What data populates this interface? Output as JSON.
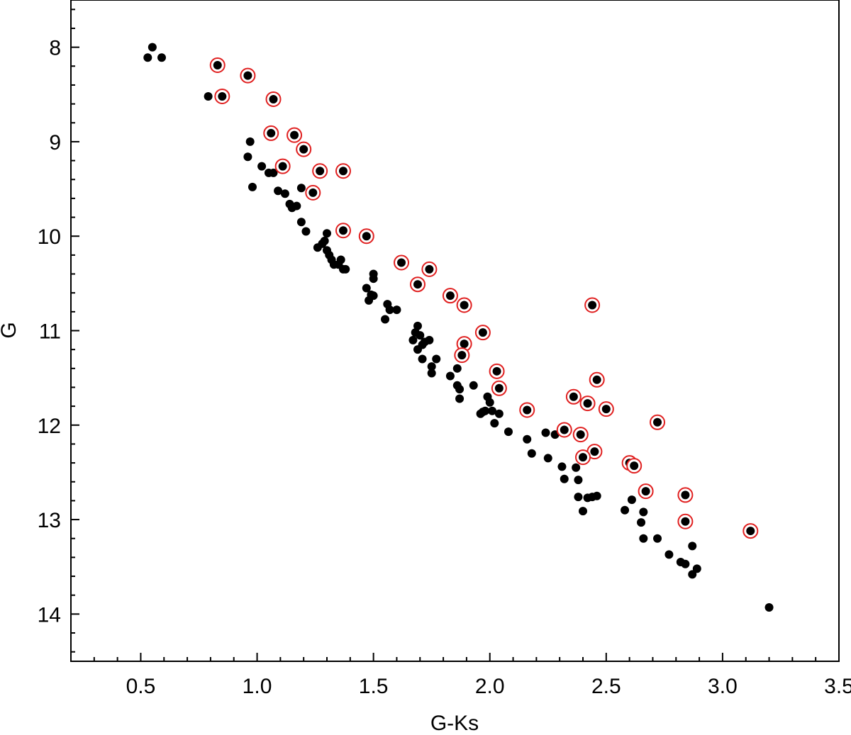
{
  "chart_data": {
    "type": "scatter",
    "title": "",
    "xlabel": "G-Ks",
    "ylabel": "G",
    "xlim": [
      0.2,
      3.5
    ],
    "ylim": [
      14.5,
      7.5
    ],
    "y_inverted": true,
    "xticks": [
      "0.5",
      "1.0",
      "1.5",
      "2.0",
      "2.5",
      "3.0",
      "3.5"
    ],
    "yticks": [
      "8",
      "9",
      "10",
      "11",
      "12",
      "13",
      "14"
    ],
    "grid": false,
    "colors": {
      "point": "#000000",
      "highlight_ring": "#e02020"
    },
    "series": [
      {
        "marker": "black-dot",
        "points": [
          [
            0.55,
            8.0
          ],
          [
            0.53,
            8.11
          ],
          [
            0.59,
            8.11
          ],
          [
            0.79,
            8.52
          ],
          [
            0.97,
            9.0
          ],
          [
            0.96,
            9.16
          ],
          [
            1.02,
            9.26
          ],
          [
            1.05,
            9.33
          ],
          [
            1.07,
            9.33
          ],
          [
            0.98,
            9.48
          ],
          [
            1.09,
            9.52
          ],
          [
            1.12,
            9.55
          ],
          [
            1.19,
            9.49
          ],
          [
            1.14,
            9.66
          ],
          [
            1.17,
            9.68
          ],
          [
            1.15,
            9.7
          ],
          [
            1.19,
            9.85
          ],
          [
            1.21,
            9.95
          ],
          [
            1.28,
            10.08
          ],
          [
            1.29,
            10.05
          ],
          [
            1.3,
            9.97
          ],
          [
            1.3,
            10.15
          ],
          [
            1.31,
            10.2
          ],
          [
            1.32,
            10.25
          ],
          [
            1.33,
            10.3
          ],
          [
            1.35,
            10.3
          ],
          [
            1.36,
            10.25
          ],
          [
            1.37,
            10.35
          ],
          [
            1.38,
            10.35
          ],
          [
            1.26,
            10.12
          ],
          [
            1.5,
            10.4
          ],
          [
            1.5,
            10.45
          ],
          [
            1.47,
            10.55
          ],
          [
            1.49,
            10.62
          ],
          [
            1.5,
            10.63
          ],
          [
            1.48,
            10.68
          ],
          [
            1.56,
            10.72
          ],
          [
            1.57,
            10.78
          ],
          [
            1.6,
            10.78
          ],
          [
            1.55,
            10.88
          ],
          [
            1.69,
            10.95
          ],
          [
            1.68,
            11.02
          ],
          [
            1.7,
            11.05
          ],
          [
            1.67,
            11.1
          ],
          [
            1.72,
            11.12
          ],
          [
            1.74,
            11.1
          ],
          [
            1.71,
            11.15
          ],
          [
            1.69,
            11.2
          ],
          [
            1.77,
            11.3
          ],
          [
            1.71,
            11.3
          ],
          [
            1.75,
            11.38
          ],
          [
            1.75,
            11.45
          ],
          [
            1.83,
            11.48
          ],
          [
            1.86,
            11.4
          ],
          [
            1.86,
            11.58
          ],
          [
            1.87,
            11.62
          ],
          [
            1.93,
            11.58
          ],
          [
            1.87,
            11.72
          ],
          [
            1.99,
            11.7
          ],
          [
            2.0,
            11.76
          ],
          [
            1.98,
            11.85
          ],
          [
            1.96,
            11.88
          ],
          [
            1.97,
            11.86
          ],
          [
            2.01,
            11.85
          ],
          [
            2.04,
            11.88
          ],
          [
            2.02,
            11.98
          ],
          [
            2.08,
            12.07
          ],
          [
            2.16,
            12.15
          ],
          [
            2.24,
            12.08
          ],
          [
            2.28,
            12.1
          ],
          [
            2.18,
            12.3
          ],
          [
            2.25,
            12.35
          ],
          [
            2.31,
            12.44
          ],
          [
            2.37,
            12.45
          ],
          [
            2.32,
            12.57
          ],
          [
            2.38,
            12.58
          ],
          [
            2.38,
            12.76
          ],
          [
            2.42,
            12.77
          ],
          [
            2.44,
            12.76
          ],
          [
            2.46,
            12.75
          ],
          [
            2.4,
            12.91
          ],
          [
            2.58,
            12.9
          ],
          [
            2.61,
            12.79
          ],
          [
            2.66,
            12.92
          ],
          [
            2.65,
            13.03
          ],
          [
            2.66,
            13.2
          ],
          [
            2.72,
            13.2
          ],
          [
            2.77,
            13.37
          ],
          [
            2.82,
            13.45
          ],
          [
            2.84,
            13.47
          ],
          [
            2.87,
            13.28
          ],
          [
            2.89,
            13.52
          ],
          [
            2.87,
            13.58
          ],
          [
            3.2,
            13.93
          ]
        ]
      },
      {
        "marker": "black-dot-red-ring",
        "points": [
          [
            0.83,
            8.19
          ],
          [
            0.96,
            8.3
          ],
          [
            0.85,
            8.52
          ],
          [
            1.07,
            8.55
          ],
          [
            1.06,
            8.91
          ],
          [
            1.16,
            8.93
          ],
          [
            1.2,
            9.08
          ],
          [
            1.11,
            9.26
          ],
          [
            1.27,
            9.31
          ],
          [
            1.37,
            9.31
          ],
          [
            1.24,
            9.54
          ],
          [
            1.37,
            9.94
          ],
          [
            1.47,
            10.0
          ],
          [
            1.62,
            10.28
          ],
          [
            1.74,
            10.35
          ],
          [
            1.69,
            10.51
          ],
          [
            1.83,
            10.63
          ],
          [
            1.89,
            10.73
          ],
          [
            2.44,
            10.73
          ],
          [
            1.97,
            11.02
          ],
          [
            1.89,
            11.14
          ],
          [
            1.88,
            11.26
          ],
          [
            2.03,
            11.43
          ],
          [
            2.46,
            11.52
          ],
          [
            2.04,
            11.61
          ],
          [
            2.36,
            11.7
          ],
          [
            2.42,
            11.77
          ],
          [
            2.5,
            11.83
          ],
          [
            2.16,
            11.84
          ],
          [
            2.72,
            11.97
          ],
          [
            2.32,
            12.05
          ],
          [
            2.39,
            12.1
          ],
          [
            2.45,
            12.28
          ],
          [
            2.4,
            12.34
          ],
          [
            2.6,
            12.4
          ],
          [
            2.62,
            12.43
          ],
          [
            2.67,
            12.7
          ],
          [
            2.84,
            12.74
          ],
          [
            2.84,
            13.02
          ],
          [
            3.12,
            13.12
          ]
        ]
      }
    ]
  }
}
